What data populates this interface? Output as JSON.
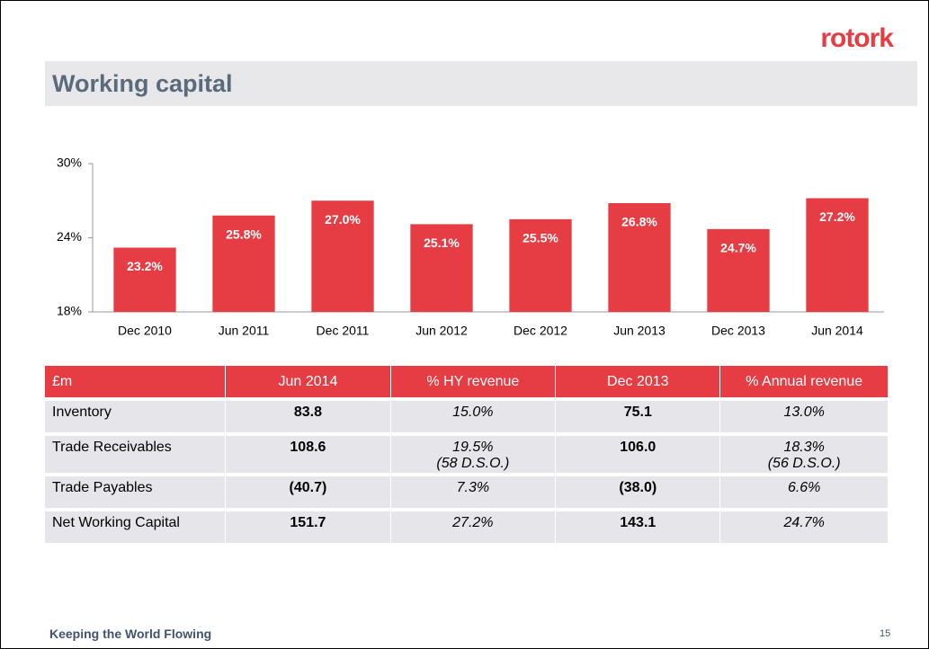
{
  "logo": "rotork",
  "title": "Working capital",
  "chart_data": {
    "type": "bar",
    "categories": [
      "Dec 2010",
      "Jun 2011",
      "Dec 2011",
      "Jun 2012",
      "Dec 2012",
      "Jun 2013",
      "Dec 2013",
      "Jun 2014"
    ],
    "values": [
      23.2,
      25.8,
      27.0,
      25.1,
      25.5,
      26.8,
      24.7,
      27.2
    ],
    "value_labels": [
      "23.2%",
      "25.8%",
      "27.0%",
      "25.1%",
      "25.5%",
      "26.8%",
      "24.7%",
      "27.2%"
    ],
    "color": "#e63c44",
    "ylim": [
      18,
      30
    ],
    "yticks": [
      {
        "value": 18,
        "label": "18%"
      },
      {
        "value": 24,
        "label": "24%"
      },
      {
        "value": 30,
        "label": "30%"
      }
    ],
    "grid": false
  },
  "table": {
    "header": [
      "£m",
      "Jun 2014",
      "% HY revenue",
      "Dec 2013",
      "% Annual revenue"
    ],
    "rows": [
      [
        "Inventory",
        "83.8",
        "15.0%",
        "75.1",
        "13.0%"
      ],
      [
        "Trade Receivables",
        "108.6",
        [
          "19.5%",
          "(58 D.S.O.)"
        ],
        "106.0",
        [
          "18.3%",
          "(56 D.S.O.)"
        ]
      ],
      [
        "Trade Payables",
        "(40.7)",
        "7.3%",
        "(38.0)",
        "6.6%"
      ],
      [
        "Net Working Capital",
        "151.7",
        "27.2%",
        "143.1",
        "24.7%"
      ]
    ]
  },
  "footer": {
    "text": "Keeping the World Flowing",
    "page": "15"
  }
}
